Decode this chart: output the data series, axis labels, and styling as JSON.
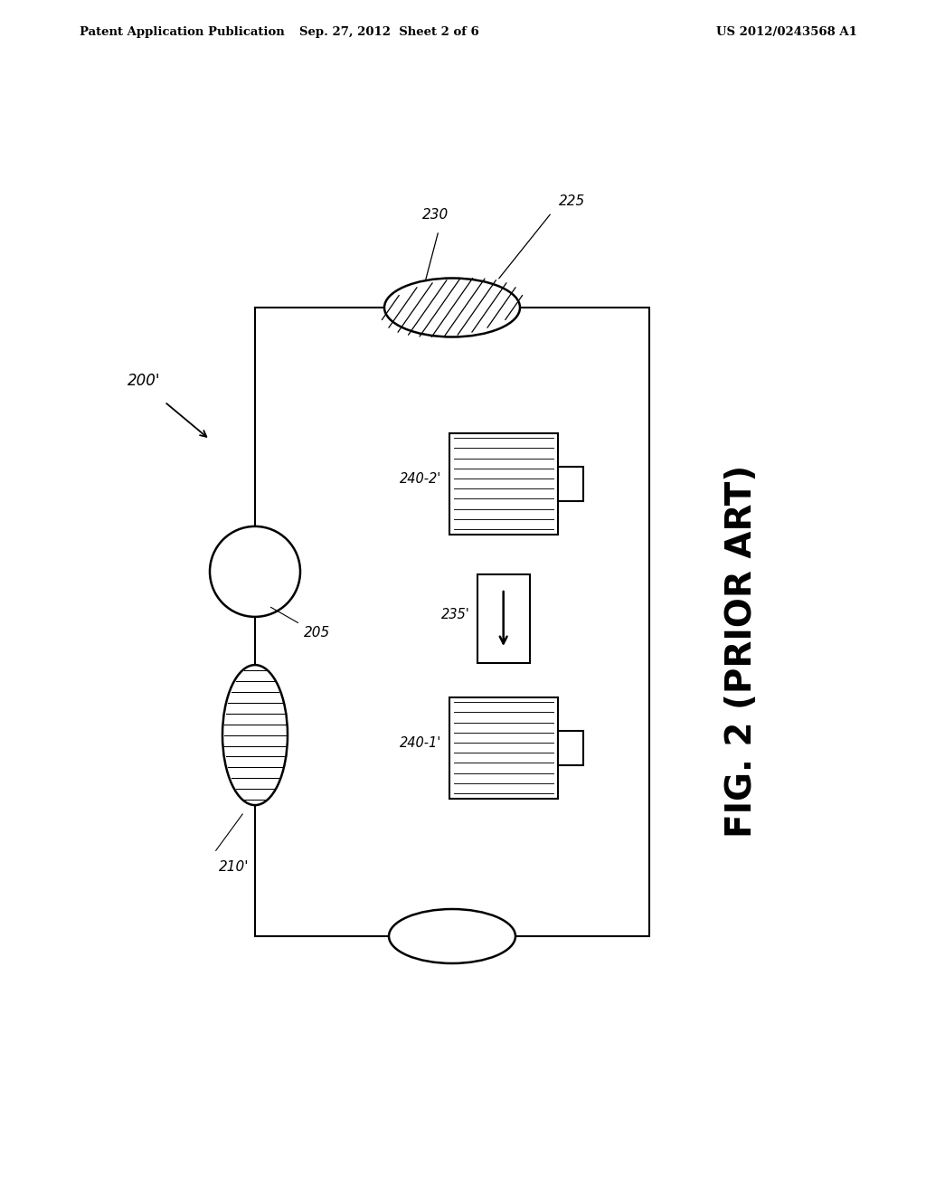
{
  "bg_color": "#ffffff",
  "header_left": "Patent Application Publication",
  "header_mid": "Sep. 27, 2012  Sheet 2 of 6",
  "header_right": "US 2012/0243568 A1",
  "fig_label": "FIG. 2 (PRIOR ART)",
  "label_200": "200'",
  "label_205": "205",
  "label_210": "210'",
  "label_225": "225",
  "label_230": "230",
  "label_235": "235'",
  "label_240_1": "240-1'",
  "label_240_2": "240-2'",
  "line_color": "#000000",
  "line_width": 1.5
}
